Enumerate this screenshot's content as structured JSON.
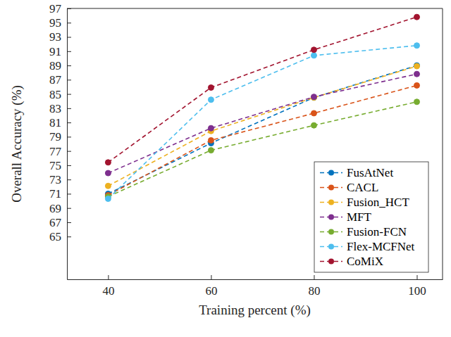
{
  "chart_data": {
    "type": "line",
    "x_label": "Training percent (%)",
    "y_label": "Overall Accuracy (%)",
    "x": [
      40,
      60,
      80,
      100
    ],
    "xlim": [
      32,
      105
    ],
    "xticks": [
      40,
      60,
      80,
      100
    ],
    "ylim": [
      59,
      97
    ],
    "yticks": [
      65,
      67,
      69,
      71,
      73,
      75,
      77,
      79,
      81,
      83,
      85,
      87,
      89,
      91,
      93,
      95,
      97
    ],
    "grid": false,
    "legend": "lower right",
    "marker": "circle",
    "line_style": "dashed",
    "series": [
      {
        "name": "FusAtNet",
        "color": "#0072BD",
        "values": [
          71.0,
          78.1,
          84.5,
          89.0
        ]
      },
      {
        "name": "CACL",
        "color": "#D95319",
        "values": [
          70.8,
          78.5,
          82.3,
          86.2
        ]
      },
      {
        "name": "Fusion_HCT",
        "color": "#EDB120",
        "values": [
          72.1,
          79.8,
          84.5,
          88.9
        ]
      },
      {
        "name": "MFT",
        "color": "#7E2F8E",
        "values": [
          73.9,
          80.2,
          84.6,
          87.8
        ]
      },
      {
        "name": "Fusion-FCN",
        "color": "#77AC30",
        "values": [
          70.6,
          77.1,
          80.6,
          83.9
        ]
      },
      {
        "name": "Flex-MCFNet",
        "color": "#4DBEEE",
        "values": [
          70.3,
          84.2,
          90.4,
          91.8
        ]
      },
      {
        "name": "CoMiX",
        "color": "#A2142F",
        "values": [
          75.4,
          85.9,
          91.2,
          95.8
        ]
      }
    ]
  }
}
